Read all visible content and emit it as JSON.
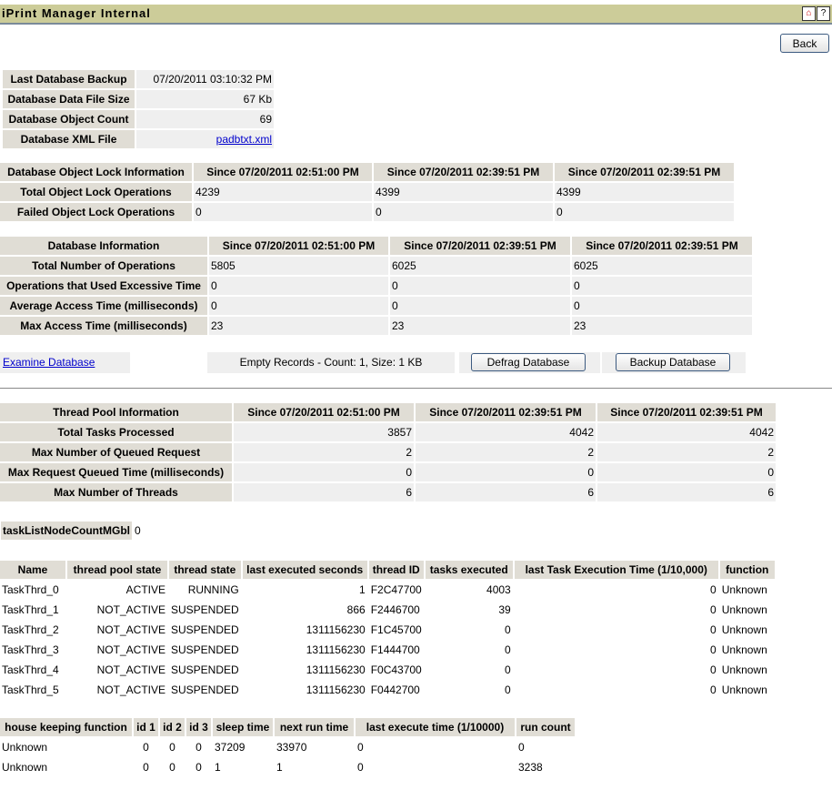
{
  "title": "iPrint Manager Internal",
  "icons": [
    "home-icon",
    "help-icon"
  ],
  "back_label": "Back",
  "backup_table": [
    {
      "label": "Last Database Backup",
      "value": "07/20/2011 03:10:32 PM"
    },
    {
      "label": "Database Data File Size",
      "value": "67 Kb"
    },
    {
      "label": "Database Object Count",
      "value": "69"
    },
    {
      "label": "Database XML File",
      "value": "padbtxt.xml"
    }
  ],
  "lock_table": {
    "headers": [
      "Database Object Lock Information",
      "Since 07/20/2011 02:51:00 PM",
      "Since 07/20/2011 02:39:51 PM",
      "Since 07/20/2011 02:39:51 PM"
    ],
    "rows": [
      [
        "Total Object Lock Operations",
        "4239",
        "4399",
        "4399"
      ],
      [
        "Failed Object Lock Operations",
        "0",
        "0",
        "0"
      ]
    ]
  },
  "db_table": {
    "headers": [
      "Database Information",
      "Since 07/20/2011 02:51:00 PM",
      "Since 07/20/2011 02:39:51 PM",
      "Since 07/20/2011 02:39:51 PM"
    ],
    "rows": [
      [
        "Total Number of Operations",
        "5805",
        "6025",
        "6025"
      ],
      [
        "Operations that Used Excessive Time",
        "0",
        "0",
        "0"
      ],
      [
        "Average Access Time (milliseconds)",
        "0",
        "0",
        "0"
      ],
      [
        "Max Access Time (milliseconds)",
        "23",
        "23",
        "23"
      ]
    ]
  },
  "actions": {
    "examine": "Examine Database",
    "empty_records": "Empty Records - Count: 1, Size: 1 KB",
    "defrag": "Defrag Database",
    "backup": "Backup Database"
  },
  "thread_pool": {
    "headers": [
      "Thread Pool Information",
      "Since 07/20/2011 02:51:00 PM",
      "Since 07/20/2011 02:39:51 PM",
      "Since 07/20/2011 02:39:51 PM"
    ],
    "rows": [
      [
        "Total Tasks Processed",
        "3857",
        "4042",
        "4042"
      ],
      [
        "Max Number of Queued Request",
        "2",
        "2",
        "2"
      ],
      [
        "Max Request Queued Time (milliseconds)",
        "0",
        "0",
        "0"
      ],
      [
        "Max Number of Threads",
        "6",
        "6",
        "6"
      ]
    ]
  },
  "task_count": {
    "label": "taskListNodeCountMGbl",
    "value": "0"
  },
  "threads": {
    "headers": [
      "Name",
      "thread pool state",
      "thread state",
      "last executed seconds",
      "thread ID",
      "tasks executed",
      "last Task Execution Time (1/10,000)",
      "function"
    ],
    "rows": [
      [
        "TaskThrd_0",
        "ACTIVE",
        "RUNNING",
        "1",
        "F2C47700",
        "4003",
        "0",
        "Unknown"
      ],
      [
        "TaskThrd_1",
        "NOT_ACTIVE",
        "SUSPENDED",
        "866",
        "F2446700",
        "39",
        "0",
        "Unknown"
      ],
      [
        "TaskThrd_2",
        "NOT_ACTIVE",
        "SUSPENDED",
        "1311156230",
        "F1C45700",
        "0",
        "0",
        "Unknown"
      ],
      [
        "TaskThrd_3",
        "NOT_ACTIVE",
        "SUSPENDED",
        "1311156230",
        "F1444700",
        "0",
        "0",
        "Unknown"
      ],
      [
        "TaskThrd_4",
        "NOT_ACTIVE",
        "SUSPENDED",
        "1311156230",
        "F0C43700",
        "0",
        "0",
        "Unknown"
      ],
      [
        "TaskThrd_5",
        "NOT_ACTIVE",
        "SUSPENDED",
        "1311156230",
        "F0442700",
        "0",
        "0",
        "Unknown"
      ]
    ]
  },
  "housekeeping": {
    "headers": [
      "house keeping function",
      "id 1",
      "id 2",
      "id 3",
      "sleep time",
      "next run time",
      "last execute time (1/10000)",
      "run count"
    ],
    "rows": [
      [
        "Unknown",
        "0",
        "0",
        "0",
        "37209",
        "33970",
        "0",
        "0"
      ],
      [
        "Unknown",
        "0",
        "0",
        "0",
        "1",
        "1",
        "0",
        "3238"
      ]
    ]
  }
}
